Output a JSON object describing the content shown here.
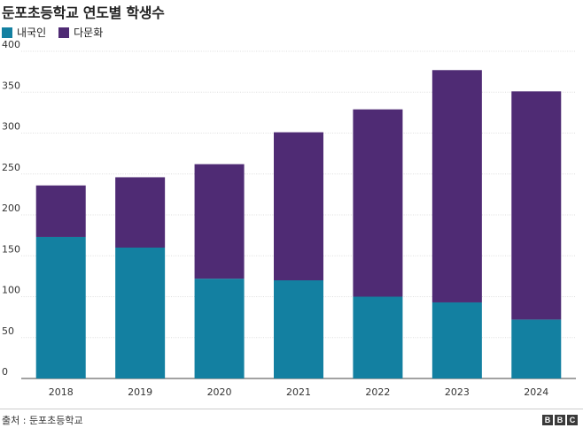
{
  "title": "둔포초등학교 연도별 학생수",
  "source": "출처 : 둔포초등학교",
  "logo": [
    "B",
    "B",
    "C"
  ],
  "chart_data": {
    "type": "bar",
    "stacked": true,
    "categories": [
      "2018",
      "2019",
      "2020",
      "2021",
      "2022",
      "2023",
      "2024"
    ],
    "series": [
      {
        "name": "내국인",
        "color": "#1380a1",
        "values": [
          173,
          160,
          122,
          120,
          100,
          93,
          72
        ]
      },
      {
        "name": "다문화",
        "color": "#4f2b74",
        "values": [
          63,
          86,
          140,
          181,
          229,
          284,
          279
        ]
      }
    ],
    "ylim": [
      0,
      400
    ],
    "yticks": [
      0,
      50,
      100,
      150,
      200,
      250,
      300,
      350,
      400
    ],
    "grid": true,
    "legend_position": "top-left"
  }
}
